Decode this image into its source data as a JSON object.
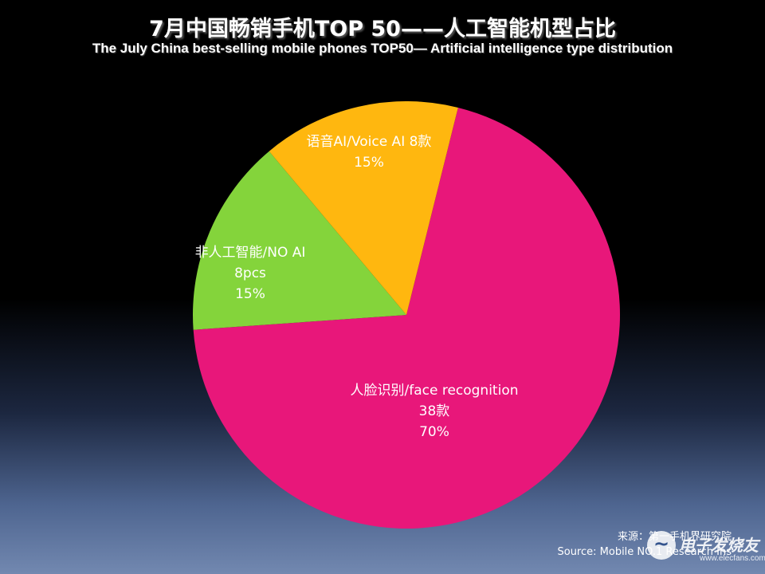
{
  "chart_data": {
    "type": "pie",
    "title": "7月中国畅销手机TOP 50——人工智能机型占比",
    "subtitle": "The July China best-selling mobile phones TOP50— Artificial intelligence type distribution",
    "slices": [
      {
        "label_lines": [
          "人脸识别/face recognition",
          "38款",
          "70%"
        ],
        "count": 38,
        "percent": 70,
        "color": "#E8177A"
      },
      {
        "label_lines": [
          "非人工智能/NO AI",
          "8pcs",
          "15%"
        ],
        "count": 8,
        "percent": 15,
        "color": "#84D43B"
      },
      {
        "label_lines": [
          "语音AI/Voice AI  8款",
          "15%"
        ],
        "count": 8,
        "percent": 15,
        "color": "#FFB70F"
      }
    ]
  },
  "source": {
    "line_cn": "来源：第一手机界研究院",
    "line_en": "Source: Mobile NO.1 Research Ins"
  },
  "watermark": {
    "name": "电子发烧友",
    "url": "www.elecfans.com",
    "logo_icon": "elecfans-logo-icon"
  }
}
